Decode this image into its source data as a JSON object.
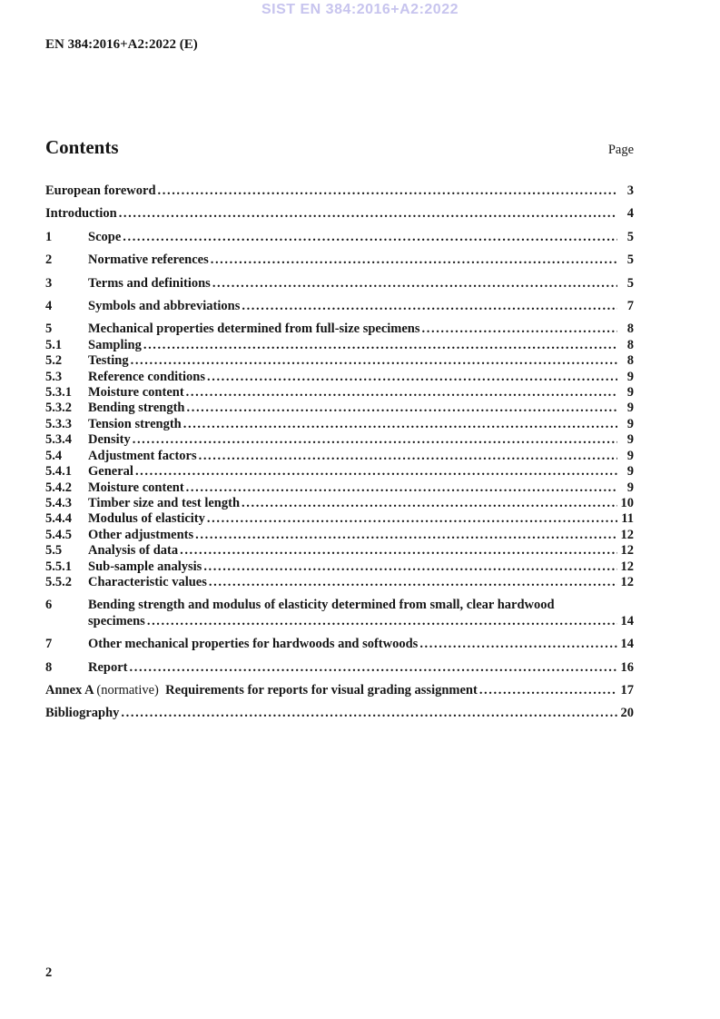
{
  "watermark": "SIST EN 384:2016+A2:2022",
  "doc_ref": "EN 384:2016+A2:2022 (E)",
  "contents": {
    "heading": "Contents",
    "page_label": "Page"
  },
  "toc": [
    {
      "num": "",
      "title": "European foreword",
      "page": "3",
      "level": "main"
    },
    {
      "num": "",
      "title": "Introduction",
      "page": "4",
      "level": "main"
    },
    {
      "num": "1",
      "title": "Scope",
      "page": "5",
      "level": "main"
    },
    {
      "num": "2",
      "title": "Normative references",
      "page": "5",
      "level": "main"
    },
    {
      "num": "3",
      "title": "Terms and definitions",
      "page": "5",
      "level": "main"
    },
    {
      "num": "4",
      "title": "Symbols and abbreviations",
      "page": "7",
      "level": "main"
    },
    {
      "num": "5",
      "title": "Mechanical properties determined from full-size specimens",
      "page": "8",
      "level": "main"
    },
    {
      "num": "5.1",
      "title": "Sampling",
      "page": "8",
      "level": "sub"
    },
    {
      "num": "5.2",
      "title": "Testing",
      "page": "8",
      "level": "sub"
    },
    {
      "num": "5.3",
      "title": "Reference conditions",
      "page": "9",
      "level": "sub"
    },
    {
      "num": "5.3.1",
      "title": "Moisture content",
      "page": "9",
      "level": "sub"
    },
    {
      "num": "5.3.2",
      "title": "Bending strength",
      "page": "9",
      "level": "sub"
    },
    {
      "num": "5.3.3",
      "title": "Tension strength",
      "page": "9",
      "level": "sub"
    },
    {
      "num": "5.3.4",
      "title": "Density",
      "page": "9",
      "level": "sub"
    },
    {
      "num": "5.4",
      "title": "Adjustment factors",
      "page": "9",
      "level": "sub"
    },
    {
      "num": "5.4.1",
      "title": "General",
      "page": "9",
      "level": "sub"
    },
    {
      "num": "5.4.2",
      "title": "Moisture content",
      "page": "9",
      "level": "sub"
    },
    {
      "num": "5.4.3",
      "title": "Timber size and test length",
      "page": "10",
      "level": "sub"
    },
    {
      "num": "5.4.4",
      "title": "Modulus of elasticity",
      "page": "11",
      "level": "sub"
    },
    {
      "num": "5.4.5",
      "title": "Other adjustments",
      "page": "12",
      "level": "sub"
    },
    {
      "num": "5.5",
      "title": "Analysis of data",
      "page": "12",
      "level": "sub"
    },
    {
      "num": "5.5.1",
      "title": "Sub-sample analysis",
      "page": "12",
      "level": "sub"
    },
    {
      "num": "5.5.2",
      "title": "Characteristic values",
      "page": "12",
      "level": "sub"
    },
    {
      "num": "6",
      "title": "Bending strength and modulus of elasticity determined from small, clear hardwood",
      "title_wrap": "specimens",
      "page": "14",
      "level": "main"
    },
    {
      "num": "7",
      "title": "Other mechanical properties for hardwoods and softwoods",
      "page": "14",
      "level": "main"
    },
    {
      "num": "8",
      "title": "Report",
      "page": "16",
      "level": "main"
    },
    {
      "num": "",
      "prefix_bold": "Annex A",
      "prefix_normal": "(normative)",
      "title": "Requirements for reports for visual grading assignment",
      "page": "17",
      "level": "main"
    },
    {
      "num": "",
      "title": "Bibliography",
      "page": "20",
      "level": "main"
    }
  ],
  "footer": {
    "page_number": "2"
  },
  "colors": {
    "watermark": "#c7c4ee",
    "text": "#161616"
  }
}
